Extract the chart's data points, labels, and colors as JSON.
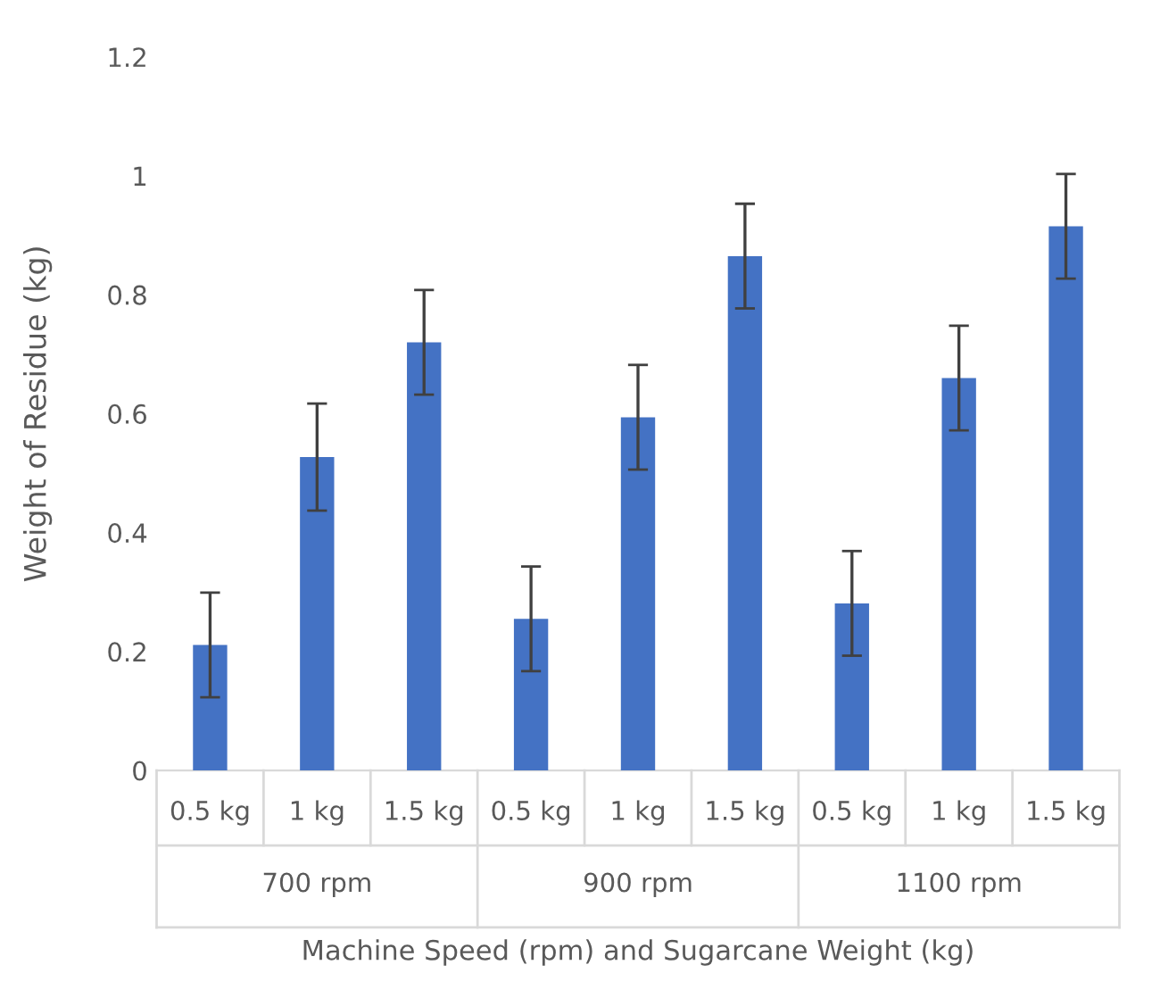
{
  "chart_data": {
    "type": "bar",
    "xlabel": "Machine Speed (rpm) and Sugarcane Weight (kg)",
    "ylabel": "Weight of Residue (kg)",
    "categories": [
      "0.5 kg",
      "1 kg",
      "1.5 kg",
      "0.5 kg",
      "1 kg",
      "1.5 kg",
      "0.5 kg",
      "1 kg",
      "1.5 kg"
    ],
    "values": [
      0.211,
      0.527,
      0.72,
      0.255,
      0.594,
      0.865,
      0.281,
      0.66,
      0.915
    ],
    "errors": [
      0.088,
      0.09,
      0.088,
      0.088,
      0.088,
      0.088,
      0.088,
      0.088,
      0.088
    ],
    "color": "#4472c4",
    "ylim": [
      0,
      1.2
    ],
    "yticks": [
      0,
      0.2,
      0.4,
      0.6,
      0.8,
      1,
      1.2
    ],
    "annotations": [
      "700 rpm",
      "900 rpm",
      "1100 rpm"
    ],
    "grid": false,
    "legend": false
  }
}
